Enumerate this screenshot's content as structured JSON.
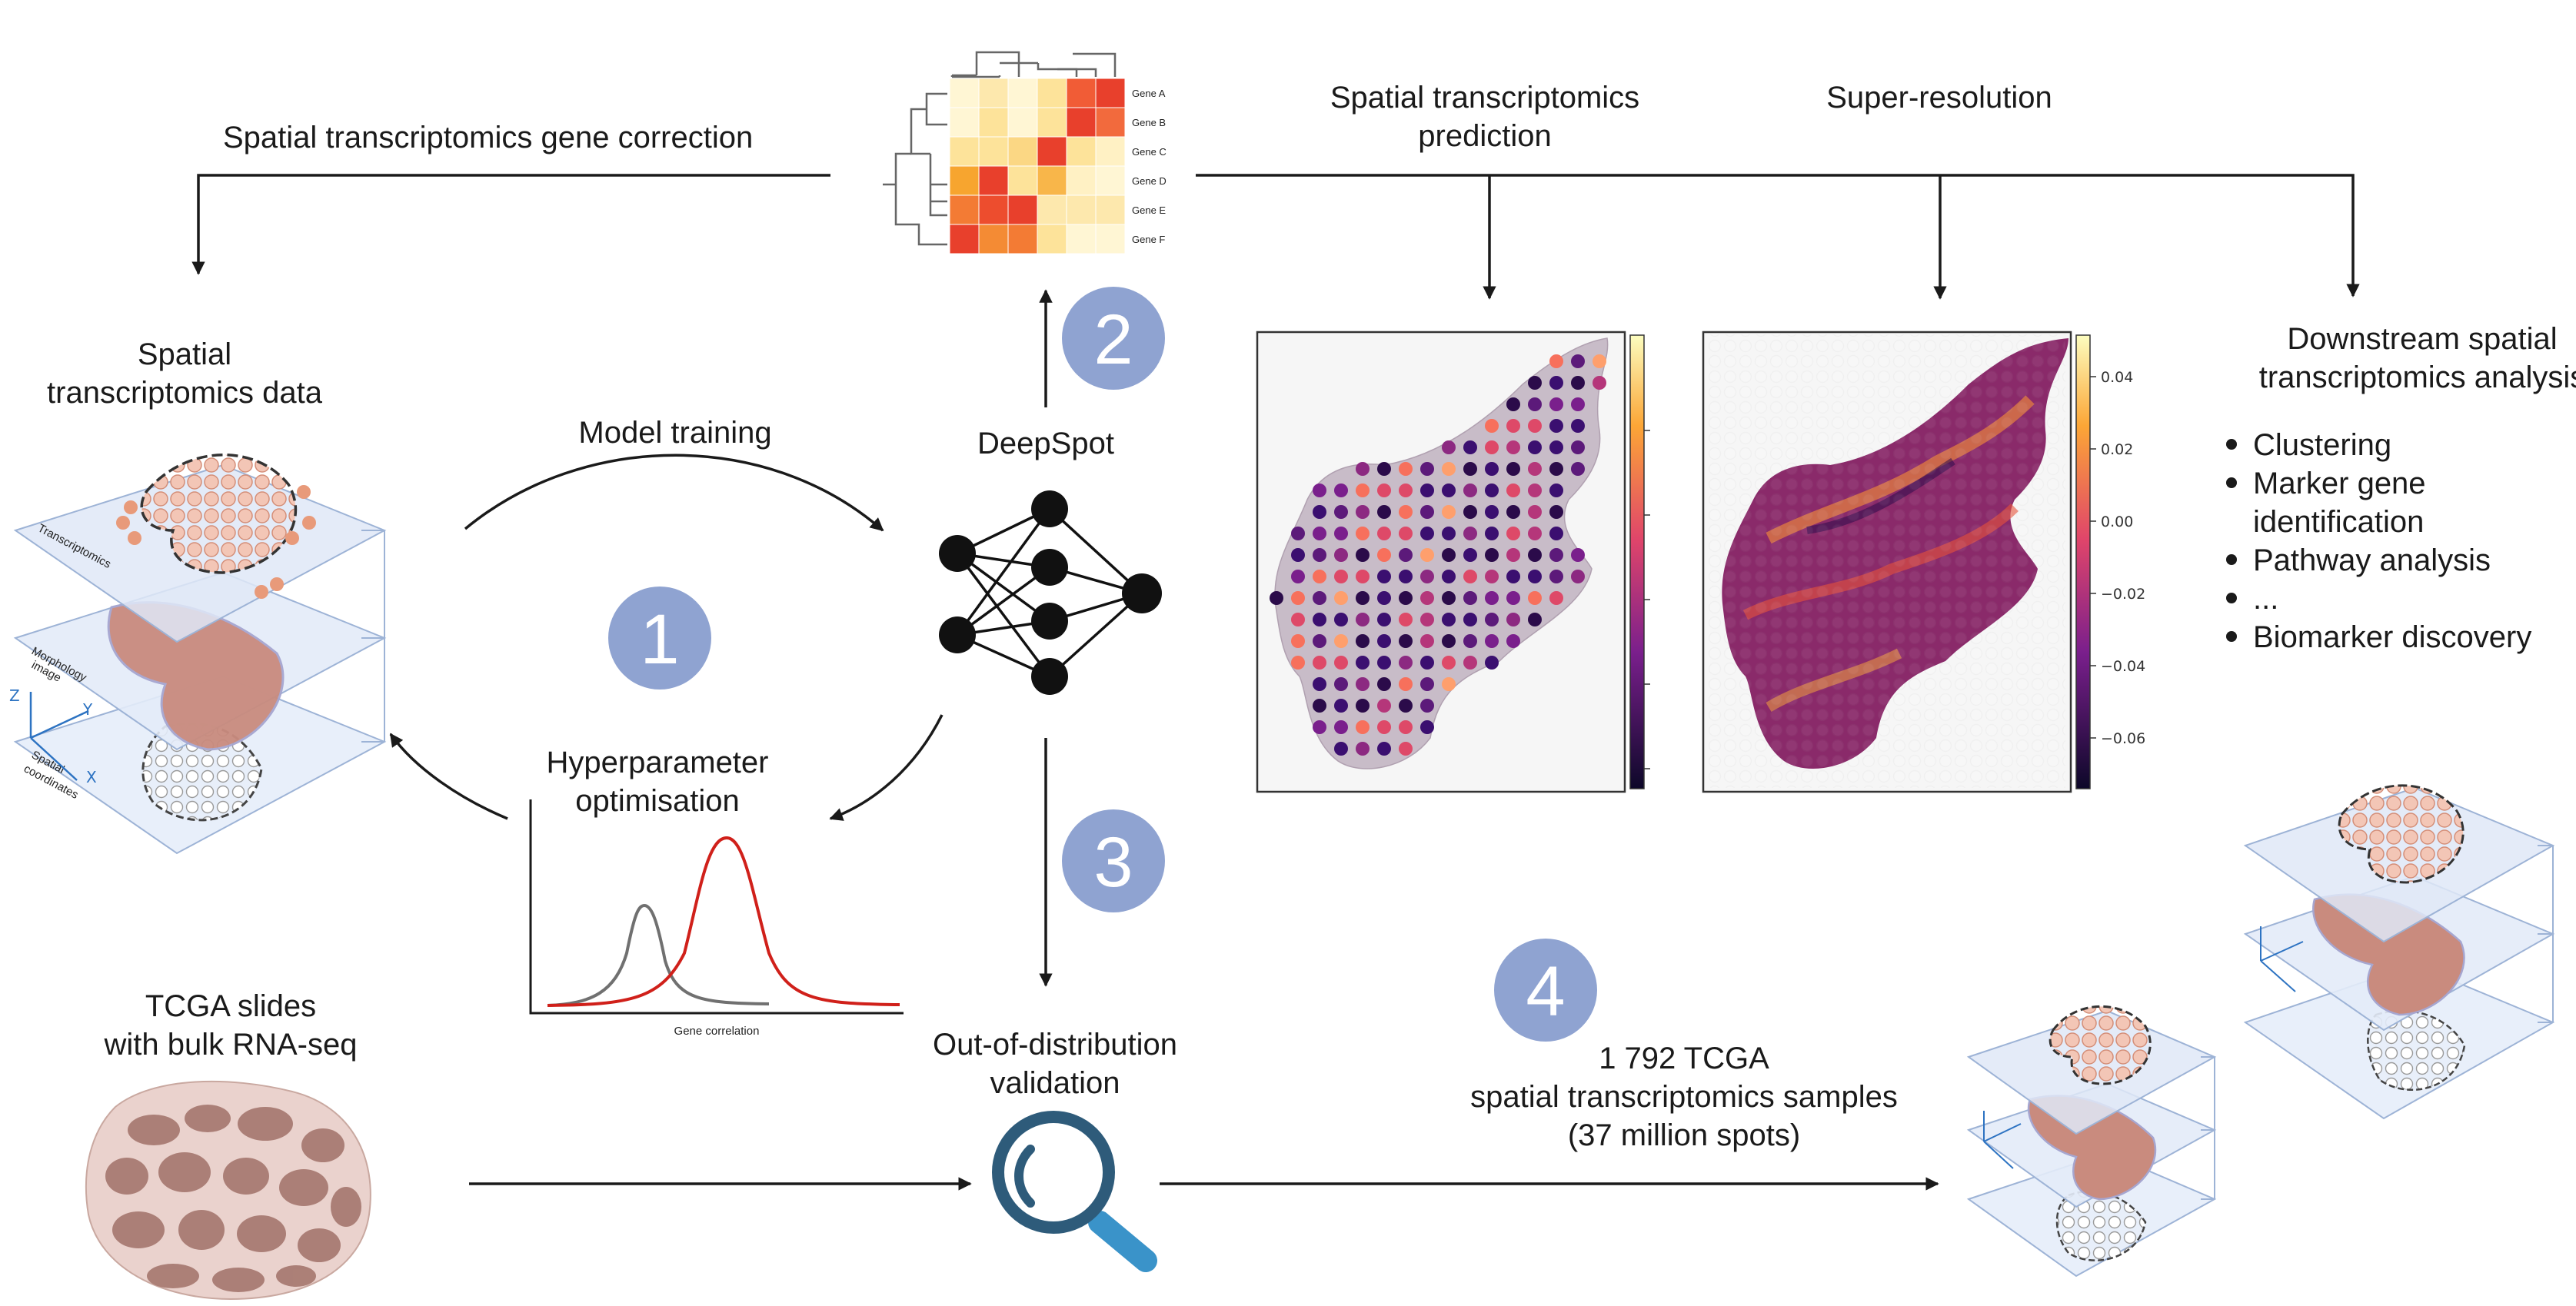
{
  "labels": {
    "gene_correction": "Spatial transcriptomics gene correction",
    "st_prediction_1": "Spatial transcriptomics",
    "st_prediction_2": "prediction",
    "super_resolution": "Super-resolution",
    "st_data_1": "Spatial",
    "st_data_2": "transcriptomics data",
    "model_training": "Model training",
    "deepspot": "DeepSpot",
    "hyperparam_1": "Hyperparameter",
    "hyperparam_2": "optimisation",
    "gene_correlation": "Gene correlation",
    "ood_1": "Out-of-distribution",
    "ood_2": "validation",
    "tcga_1": "TCGA slides",
    "tcga_2": "with bulk RNA-seq",
    "samples_1": "1 792 TCGA",
    "samples_2": "spatial transcriptomics samples",
    "samples_3": "(37 million spots)",
    "downstream_1": "Downstream spatial",
    "downstream_2": "transcriptomics analysis"
  },
  "steps": [
    "1",
    "2",
    "3",
    "4"
  ],
  "downstream_items": [
    "Clustering",
    "Marker gene",
    "identification",
    "Pathway analysis",
    "...",
    "Biomarker discovery"
  ],
  "heatmap_genes": [
    "Gene A",
    "Gene B",
    "Gene C",
    "Gene D",
    "Gene E",
    "Gene F"
  ],
  "layer_labels": {
    "transcriptomics": "Transcriptomics",
    "morphology_1": "Morphology",
    "morphology_2": "image",
    "spatial_1": "Spatial",
    "spatial_2": "coordinates",
    "axis_z": "Z",
    "axis_y": "Y",
    "axis_x": "X"
  },
  "colorbar_ticks": [
    "0.04",
    "0.02",
    "0.00",
    "−0.02",
    "−0.04",
    "−0.06"
  ],
  "colors": {
    "step_circle": "#8fa3d1",
    "tissue_pink": "#c98b7e",
    "spot_orange": "#e89a7a",
    "red_curve": "#d0201a",
    "grey_curve": "#707070",
    "magnifier_ring": "#2e5b7a",
    "magnifier_handle": "#3a93c9"
  }
}
